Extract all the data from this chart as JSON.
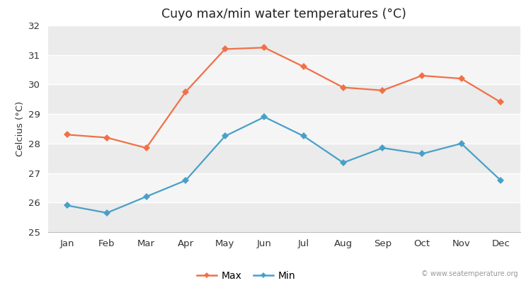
{
  "title": "Cuyo max/min water temperatures (°C)",
  "ylabel": "Celcius (°C)",
  "months": [
    "Jan",
    "Feb",
    "Mar",
    "Apr",
    "May",
    "Jun",
    "Jul",
    "Aug",
    "Sep",
    "Oct",
    "Nov",
    "Dec"
  ],
  "max_temps": [
    28.3,
    28.2,
    27.85,
    29.75,
    31.2,
    31.25,
    30.6,
    29.9,
    29.8,
    30.3,
    30.2,
    29.4
  ],
  "min_temps": [
    25.9,
    25.65,
    26.2,
    26.75,
    28.25,
    28.9,
    28.25,
    27.35,
    27.85,
    27.65,
    28.0,
    26.75
  ],
  "max_color": "#f07048",
  "min_color": "#48a0c8",
  "bg_color": "#ffffff",
  "band_colors": [
    "#ebebeb",
    "#f5f5f5"
  ],
  "grid_color": "#ffffff",
  "ylim": [
    25,
    32
  ],
  "yticks": [
    25,
    26,
    27,
    28,
    29,
    30,
    31,
    32
  ],
  "watermark": "© www.seatemperature.org",
  "legend_labels": [
    "Max",
    "Min"
  ]
}
